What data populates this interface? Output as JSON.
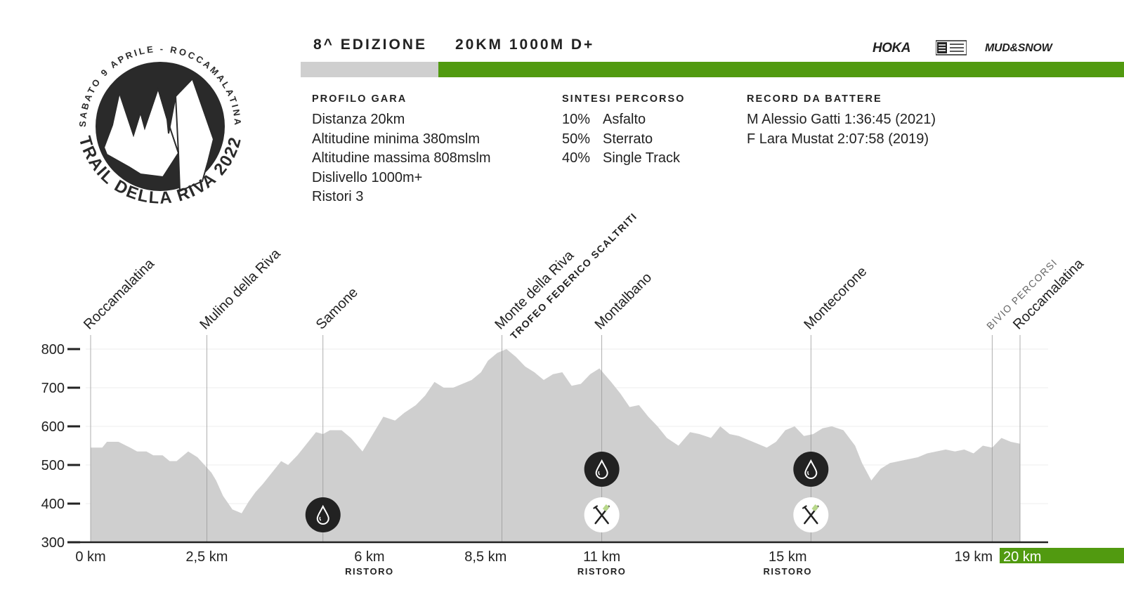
{
  "logo": {
    "arc_text": "SABATO 9 APRILE - ROCCAMALATINA",
    "bottom_text": "TRAIL DELLA RIVA 2022"
  },
  "header": {
    "edition": "8^ EDIZIONE",
    "distance_summary": "20KM 1000M D+"
  },
  "sponsors": [
    {
      "name": "HOKA",
      "icon": "hoka-logo"
    },
    {
      "name": "Compressport",
      "icon": "compressport-logo"
    },
    {
      "name": "MUD&SNOW",
      "icon": "mud-and-snow-logo"
    }
  ],
  "profilo_gara": {
    "title": "PROFILO GARA",
    "lines": [
      "Distanza 20km",
      "Altitudine minima 380mslm",
      "Altitudine massima 808mslm",
      "Dislivello 1000m+",
      "Ristori 3"
    ]
  },
  "sintesi_percorso": {
    "title": "SINTESI PERCORSO",
    "rows": [
      {
        "pct": "10%",
        "label": "Asfalto"
      },
      {
        "pct": "50%",
        "label": "Sterrato"
      },
      {
        "pct": "40%",
        "label": "Single Track"
      }
    ]
  },
  "record": {
    "title": "RECORD DA BATTERE",
    "lines": [
      "M Alessio Gatti 1:36:45 (2021)",
      "F Lara Mustat 2:07:58 (2019)"
    ]
  },
  "colors": {
    "accent_green": "#519a10",
    "profile_fill": "#cfcfcf",
    "bar_gray": "#cfcfcf",
    "icon_dark": "#222222"
  },
  "chart_data": {
    "type": "area",
    "title": "",
    "xlabel": "",
    "ylabel": "",
    "ylim": [
      300,
      800
    ],
    "yticks": [
      300,
      400,
      500,
      600,
      700,
      800
    ],
    "xlim": [
      0,
      20
    ],
    "grid": true,
    "xticks": [
      {
        "km": 0,
        "label": "0 km",
        "sublabel": "",
        "highlight": false
      },
      {
        "km": 2.5,
        "label": "2,5 km",
        "sublabel": "",
        "highlight": false
      },
      {
        "km": 6,
        "label": "6 km",
        "sublabel": "RISTORO",
        "highlight": false
      },
      {
        "km": 8.5,
        "label": "8,5 km",
        "sublabel": "",
        "highlight": false
      },
      {
        "km": 11,
        "label": "11 km",
        "sublabel": "RISTORO",
        "highlight": false
      },
      {
        "km": 15,
        "label": "15 km",
        "sublabel": "RISTORO",
        "highlight": false
      },
      {
        "km": 19,
        "label": "19 km",
        "sublabel": "",
        "highlight": false
      },
      {
        "km": 20,
        "label": "20 km",
        "sublabel": "",
        "highlight": true
      }
    ],
    "waypoints": [
      {
        "km": 0,
        "name": "Roccamalatina",
        "style": "normal",
        "subtitle": ""
      },
      {
        "km": 2.5,
        "name": "Mulino della Riva",
        "style": "normal",
        "subtitle": ""
      },
      {
        "km": 5,
        "name": "Samone",
        "style": "normal",
        "subtitle": ""
      },
      {
        "km": 8.85,
        "name": "Monte della Riva",
        "style": "normal",
        "subtitle": "TROFEO FEDERICO SCALTRITI"
      },
      {
        "km": 11,
        "name": "Montalbano",
        "style": "normal",
        "subtitle": ""
      },
      {
        "km": 15.5,
        "name": "Montecorone",
        "style": "normal",
        "subtitle": ""
      },
      {
        "km": 19.4,
        "name": "BIVIO PERCORSI",
        "style": "small",
        "subtitle": ""
      },
      {
        "km": 20,
        "name": "Roccamalatina",
        "style": "normal",
        "subtitle": ""
      }
    ],
    "aid_stations": [
      {
        "km": 5,
        "icons": [
          "water-drop-icon"
        ]
      },
      {
        "km": 11,
        "icons": [
          "water-drop-icon",
          "food-icon"
        ]
      },
      {
        "km": 15.5,
        "icons": [
          "water-drop-icon",
          "food-icon"
        ]
      }
    ],
    "series": [
      {
        "x": [
          0,
          0.25,
          0.35,
          0.6,
          0.85,
          1.0,
          1.2,
          1.35,
          1.55,
          1.7,
          1.85,
          2.1,
          2.3,
          2.45,
          2.6,
          2.7,
          2.85,
          3.05,
          3.25,
          3.4,
          3.55,
          3.7,
          3.9,
          4.1,
          4.25,
          4.45,
          4.65,
          4.85,
          5.0,
          5.15,
          5.25,
          5.4,
          5.6,
          5.85,
          6.05,
          6.3,
          6.55,
          6.75,
          7.0,
          7.2,
          7.4,
          7.6,
          7.8,
          8.0,
          8.2,
          8.4,
          8.55,
          8.75,
          8.95,
          9.15,
          9.35,
          9.55,
          9.75,
          9.95,
          10.15,
          10.35,
          10.55,
          10.75,
          10.95,
          11.2,
          11.4,
          11.6,
          11.8,
          12.0,
          12.2,
          12.4,
          12.65,
          12.9,
          13.1,
          13.35,
          13.55,
          13.75,
          13.95,
          14.15,
          14.35,
          14.55,
          14.75,
          14.95,
          15.15,
          15.35,
          15.55,
          15.75,
          15.95,
          16.2,
          16.45,
          16.6,
          16.8,
          17.0,
          17.2,
          17.4,
          17.6,
          17.8,
          18.0,
          18.2,
          18.4,
          18.6,
          18.8,
          19.0,
          19.2,
          19.4,
          19.6,
          19.8,
          20.0
        ],
        "y": [
          545,
          545,
          560,
          560,
          545,
          535,
          535,
          525,
          525,
          510,
          510,
          535,
          520,
          500,
          480,
          460,
          420,
          385,
          375,
          405,
          430,
          450,
          480,
          510,
          500,
          525,
          555,
          585,
          580,
          590,
          590,
          590,
          570,
          535,
          575,
          625,
          615,
          635,
          655,
          680,
          715,
          700,
          700,
          710,
          720,
          740,
          770,
          790,
          800,
          780,
          755,
          740,
          720,
          735,
          740,
          705,
          710,
          735,
          750,
          715,
          685,
          650,
          655,
          625,
          600,
          570,
          550,
          585,
          580,
          570,
          600,
          580,
          575,
          565,
          555,
          545,
          560,
          590,
          600,
          575,
          580,
          595,
          600,
          590,
          550,
          505,
          460,
          490,
          505,
          510,
          515,
          520,
          530,
          535,
          540,
          535,
          540,
          530,
          550,
          545,
          570,
          560,
          555
        ]
      }
    ]
  }
}
